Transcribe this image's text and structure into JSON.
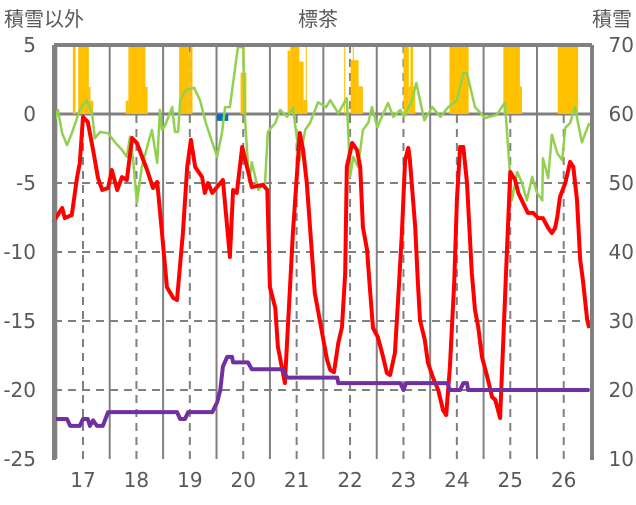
{
  "chart_data": {
    "type": "line",
    "title": "標茶",
    "ylabel_left": "積雪以外",
    "ylabel_right": "積雪",
    "xlim": [
      16.457,
      26.53
    ],
    "ylim_left": [
      -25,
      5
    ],
    "ylim_right": [
      10,
      70
    ],
    "x_ticks": [
      17,
      18,
      19,
      20,
      21,
      22,
      23,
      24,
      25,
      26
    ],
    "y_ticks_left": [
      5,
      0,
      -5,
      -10,
      -15,
      -20,
      -25
    ],
    "y_ticks_right": [
      70,
      60,
      50,
      40,
      30,
      20,
      10
    ],
    "grid": true,
    "colors": {
      "red": "#FF0000",
      "green": "#92D050",
      "purple": "#7030A0",
      "yellow": "#FFC000",
      "blue": "#0070C0",
      "axis": "#808080"
    },
    "series": [
      {
        "key": "red",
        "axis": "left",
        "color": "#FF0000",
        "points": [
          [
            16.44,
            -7.83
          ],
          [
            16.61,
            -6.81
          ],
          [
            16.66,
            -7.54
          ],
          [
            16.79,
            -7.32
          ],
          [
            16.89,
            -4.57
          ],
          [
            16.94,
            -3.55
          ],
          [
            17.0,
            -0.22
          ],
          [
            17.09,
            -0.58
          ],
          [
            17.19,
            -2.61
          ],
          [
            17.28,
            -4.64
          ],
          [
            17.36,
            -5.51
          ],
          [
            17.47,
            -5.36
          ],
          [
            17.54,
            -4.06
          ],
          [
            17.64,
            -5.51
          ],
          [
            17.73,
            -4.57
          ],
          [
            17.82,
            -4.78
          ],
          [
            17.92,
            -1.74
          ],
          [
            18.01,
            -2.1
          ],
          [
            18.2,
            -4.06
          ],
          [
            18.31,
            -5.36
          ],
          [
            18.39,
            -4.93
          ],
          [
            18.48,
            -8.62
          ],
          [
            18.57,
            -12.54
          ],
          [
            18.69,
            -13.33
          ],
          [
            18.76,
            -13.48
          ],
          [
            18.87,
            -8.62
          ],
          [
            18.95,
            -3.84
          ],
          [
            19.02,
            -1.88
          ],
          [
            19.1,
            -3.84
          ],
          [
            19.23,
            -4.57
          ],
          [
            19.28,
            -5.72
          ],
          [
            19.34,
            -5.0
          ],
          [
            19.42,
            -5.72
          ],
          [
            19.62,
            -4.78
          ],
          [
            19.75,
            -10.36
          ],
          [
            19.81,
            -5.51
          ],
          [
            19.88,
            -5.72
          ],
          [
            19.98,
            -2.39
          ],
          [
            20.07,
            -3.84
          ],
          [
            20.16,
            -5.29
          ],
          [
            20.37,
            -5.14
          ],
          [
            20.45,
            -5.51
          ],
          [
            20.5,
            -12.54
          ],
          [
            20.6,
            -14.06
          ],
          [
            20.65,
            -16.88
          ],
          [
            20.78,
            -19.49
          ],
          [
            20.93,
            -8.62
          ],
          [
            21.06,
            -1.38
          ],
          [
            21.12,
            -2.61
          ],
          [
            21.19,
            -5.0
          ],
          [
            21.34,
            -12.97
          ],
          [
            21.57,
            -17.83
          ],
          [
            21.63,
            -18.55
          ],
          [
            21.7,
            -18.7
          ],
          [
            21.78,
            -16.59
          ],
          [
            21.85,
            -15.43
          ],
          [
            21.91,
            -11.52
          ],
          [
            21.94,
            -3.84
          ],
          [
            22.04,
            -2.1
          ],
          [
            22.13,
            -2.61
          ],
          [
            22.19,
            -3.84
          ],
          [
            22.24,
            -8.19
          ],
          [
            22.32,
            -9.86
          ],
          [
            22.37,
            -12.54
          ],
          [
            22.43,
            -15.51
          ],
          [
            22.52,
            -16.16
          ],
          [
            22.6,
            -17.32
          ],
          [
            22.69,
            -18.77
          ],
          [
            22.75,
            -18.91
          ],
          [
            22.84,
            -17.32
          ],
          [
            22.9,
            -13.48
          ],
          [
            22.97,
            -8.62
          ],
          [
            23.03,
            -3.33
          ],
          [
            23.09,
            -2.46
          ],
          [
            23.12,
            -3.33
          ],
          [
            23.22,
            -8.19
          ],
          [
            23.27,
            -12.25
          ],
          [
            23.31,
            -14.93
          ],
          [
            23.4,
            -16.38
          ],
          [
            23.46,
            -18.04
          ],
          [
            23.55,
            -19.06
          ],
          [
            23.65,
            -20.0
          ],
          [
            23.74,
            -21.45
          ],
          [
            23.8,
            -21.81
          ],
          [
            23.87,
            -18.33
          ],
          [
            23.95,
            -12.25
          ],
          [
            24.0,
            -6.23
          ],
          [
            24.06,
            -2.39
          ],
          [
            24.12,
            -2.39
          ],
          [
            24.19,
            -5.0
          ],
          [
            24.28,
            -11.52
          ],
          [
            24.34,
            -14.2
          ],
          [
            24.4,
            -15.43
          ],
          [
            24.47,
            -17.61
          ],
          [
            24.57,
            -19.06
          ],
          [
            24.66,
            -20.51
          ],
          [
            24.72,
            -20.72
          ],
          [
            24.81,
            -22.03
          ],
          [
            24.87,
            -16.38
          ],
          [
            24.94,
            -9.64
          ],
          [
            25.0,
            -4.2
          ],
          [
            25.09,
            -4.78
          ],
          [
            25.15,
            -5.72
          ],
          [
            25.24,
            -6.45
          ],
          [
            25.33,
            -7.17
          ],
          [
            25.43,
            -7.17
          ],
          [
            25.52,
            -7.54
          ],
          [
            25.61,
            -7.54
          ],
          [
            25.71,
            -8.26
          ],
          [
            25.78,
            -8.62
          ],
          [
            25.84,
            -8.26
          ],
          [
            25.88,
            -7.46
          ],
          [
            25.93,
            -6.01
          ],
          [
            26.03,
            -5.0
          ],
          [
            26.12,
            -3.48
          ],
          [
            26.18,
            -3.84
          ],
          [
            26.25,
            -6.23
          ],
          [
            26.31,
            -10.58
          ],
          [
            26.36,
            -12.03
          ],
          [
            26.44,
            -14.93
          ],
          [
            26.48,
            -15.51
          ]
        ]
      },
      {
        "key": "purple",
        "axis": "left",
        "color": "#7030A0",
        "points": [
          [
            16.44,
            -22.1
          ],
          [
            16.7,
            -22.1
          ],
          [
            16.76,
            -22.6
          ],
          [
            16.94,
            -22.6
          ],
          [
            17.0,
            -22.1
          ],
          [
            17.09,
            -22.1
          ],
          [
            17.13,
            -22.6
          ],
          [
            17.19,
            -22.2
          ],
          [
            17.26,
            -22.6
          ],
          [
            17.37,
            -22.6
          ],
          [
            17.47,
            -21.6
          ],
          [
            18.76,
            -21.6
          ],
          [
            18.82,
            -22.1
          ],
          [
            18.91,
            -22.1
          ],
          [
            18.97,
            -21.6
          ],
          [
            19.42,
            -21.6
          ],
          [
            19.51,
            -20.9
          ],
          [
            19.57,
            -20.0
          ],
          [
            19.62,
            -18.3
          ],
          [
            19.7,
            -17.6
          ],
          [
            19.79,
            -17.6
          ],
          [
            19.81,
            -18.0
          ],
          [
            20.09,
            -18.0
          ],
          [
            20.16,
            -18.5
          ],
          [
            20.74,
            -18.5
          ],
          [
            20.82,
            -19.1
          ],
          [
            21.76,
            -19.1
          ],
          [
            21.78,
            -19.5
          ],
          [
            22.94,
            -19.5
          ],
          [
            23.0,
            -20.0
          ],
          [
            23.05,
            -19.5
          ],
          [
            23.82,
            -19.5
          ],
          [
            23.87,
            -20.0
          ],
          [
            24.06,
            -20.0
          ],
          [
            24.12,
            -19.5
          ],
          [
            24.19,
            -19.5
          ],
          [
            24.21,
            -20.0
          ],
          [
            26.48,
            -20.0
          ]
        ]
      },
      {
        "key": "green",
        "axis": "right",
        "color": "#92D050",
        "points": [
          [
            16.44,
            58.1
          ],
          [
            16.53,
            60.6
          ],
          [
            16.61,
            57.2
          ],
          [
            16.7,
            55.5
          ],
          [
            16.79,
            57.2
          ],
          [
            16.94,
            60.6
          ],
          [
            17.07,
            62.0
          ],
          [
            17.17,
            60.1
          ],
          [
            17.22,
            56.5
          ],
          [
            17.32,
            57.4
          ],
          [
            17.47,
            57.2
          ],
          [
            17.6,
            55.9
          ],
          [
            17.73,
            54.8
          ],
          [
            17.82,
            53.8
          ],
          [
            17.88,
            56.7
          ],
          [
            17.94,
            53.3
          ],
          [
            18.01,
            47.1
          ],
          [
            18.1,
            52.3
          ],
          [
            18.2,
            55.2
          ],
          [
            18.29,
            57.7
          ],
          [
            18.39,
            52.9
          ],
          [
            18.44,
            60.6
          ],
          [
            18.48,
            57.7
          ],
          [
            18.54,
            58.4
          ],
          [
            18.67,
            61.0
          ],
          [
            18.72,
            57.4
          ],
          [
            18.78,
            57.4
          ],
          [
            18.82,
            62.0
          ],
          [
            18.93,
            63.5
          ],
          [
            19.08,
            63.8
          ],
          [
            19.19,
            62.0
          ],
          [
            19.3,
            58.7
          ],
          [
            19.51,
            53.8
          ],
          [
            19.6,
            57.2
          ],
          [
            19.66,
            61.0
          ],
          [
            19.75,
            61.0
          ],
          [
            19.9,
            69.7
          ],
          [
            20.0,
            69.7
          ],
          [
            20.03,
            59.9
          ],
          [
            20.07,
            54.8
          ],
          [
            20.11,
            50.1
          ],
          [
            20.16,
            53.0
          ],
          [
            20.28,
            49.0
          ],
          [
            20.41,
            50.1
          ],
          [
            20.46,
            57.4
          ],
          [
            20.6,
            58.7
          ],
          [
            20.69,
            60.6
          ],
          [
            20.82,
            59.6
          ],
          [
            20.93,
            60.9
          ],
          [
            21.06,
            53.3
          ],
          [
            21.16,
            57.7
          ],
          [
            21.25,
            58.7
          ],
          [
            21.4,
            61.7
          ],
          [
            21.55,
            61.0
          ],
          [
            21.63,
            62.0
          ],
          [
            21.78,
            60.1
          ],
          [
            21.94,
            62.3
          ],
          [
            22.0,
            50.9
          ],
          [
            22.06,
            53.8
          ],
          [
            22.15,
            52.3
          ],
          [
            22.24,
            57.7
          ],
          [
            22.34,
            58.7
          ],
          [
            22.41,
            61.0
          ],
          [
            22.51,
            58.1
          ],
          [
            22.71,
            61.6
          ],
          [
            22.81,
            59.6
          ],
          [
            22.94,
            60.6
          ],
          [
            23.01,
            59.6
          ],
          [
            23.16,
            62.0
          ],
          [
            23.24,
            64.5
          ],
          [
            23.39,
            59.1
          ],
          [
            23.54,
            61.0
          ],
          [
            23.69,
            59.6
          ],
          [
            23.84,
            61.0
          ],
          [
            24.0,
            62.0
          ],
          [
            24.12,
            65.9
          ],
          [
            24.19,
            65.9
          ],
          [
            24.34,
            61.0
          ],
          [
            24.53,
            59.4
          ],
          [
            24.75,
            59.9
          ],
          [
            24.9,
            61.7
          ],
          [
            24.94,
            57.2
          ],
          [
            25.03,
            47.5
          ],
          [
            25.13,
            51.6
          ],
          [
            25.22,
            50.0
          ],
          [
            25.31,
            47.5
          ],
          [
            25.41,
            50.9
          ],
          [
            25.5,
            48.6
          ],
          [
            25.6,
            47.5
          ],
          [
            25.61,
            53.6
          ],
          [
            25.71,
            50.7
          ],
          [
            25.78,
            57.0
          ],
          [
            25.88,
            54.3
          ],
          [
            25.97,
            53.3
          ],
          [
            26.03,
            58.0
          ],
          [
            26.12,
            58.7
          ],
          [
            26.21,
            61.0
          ],
          [
            26.34,
            55.9
          ],
          [
            26.48,
            58.7
          ]
        ]
      }
    ],
    "bars": [
      {
        "key": "yellow",
        "axis": "left",
        "color": "#FFC000",
        "items": [
          [
            16.81,
            16.86,
            5
          ],
          [
            16.91,
            17.11,
            5
          ],
          [
            17.11,
            17.14,
            1.96
          ],
          [
            17.14,
            17.19,
            0.97
          ],
          [
            17.8,
            17.85,
            0.97
          ],
          [
            17.85,
            18.17,
            5
          ],
          [
            18.17,
            18.21,
            1.96
          ],
          [
            18.8,
            18.98,
            5
          ],
          [
            18.98,
            19.01,
            4.5
          ],
          [
            19.01,
            19.05,
            5
          ],
          [
            19.95,
            20.06,
            3.0
          ],
          [
            20.0,
            20.03,
            5
          ],
          [
            20.83,
            20.88,
            4.6
          ],
          [
            20.88,
            21.05,
            5
          ],
          [
            21.05,
            21.13,
            3.8
          ],
          [
            21.13,
            21.2,
            1.0
          ],
          [
            21.17,
            21.19,
            5
          ],
          [
            21.89,
            21.91,
            5
          ],
          [
            22.01,
            22.16,
            3.9
          ],
          [
            22.05,
            22.07,
            5
          ],
          [
            22.16,
            22.24,
            2.0
          ],
          [
            23.0,
            23.1,
            5
          ],
          [
            23.1,
            23.13,
            2.0
          ],
          [
            23.13,
            23.18,
            5
          ],
          [
            23.18,
            23.22,
            2.0
          ],
          [
            23.86,
            24.22,
            5
          ],
          [
            24.87,
            25.18,
            5
          ],
          [
            25.18,
            25.22,
            2.0
          ],
          [
            25.89,
            26.27,
            5
          ]
        ]
      },
      {
        "key": "blue",
        "axis": "left",
        "color": "#0070C0",
        "items": [
          [
            19.51,
            19.72,
            -0.5
          ],
          [
            19.6,
            19.63,
            -1.0
          ]
        ]
      }
    ]
  }
}
